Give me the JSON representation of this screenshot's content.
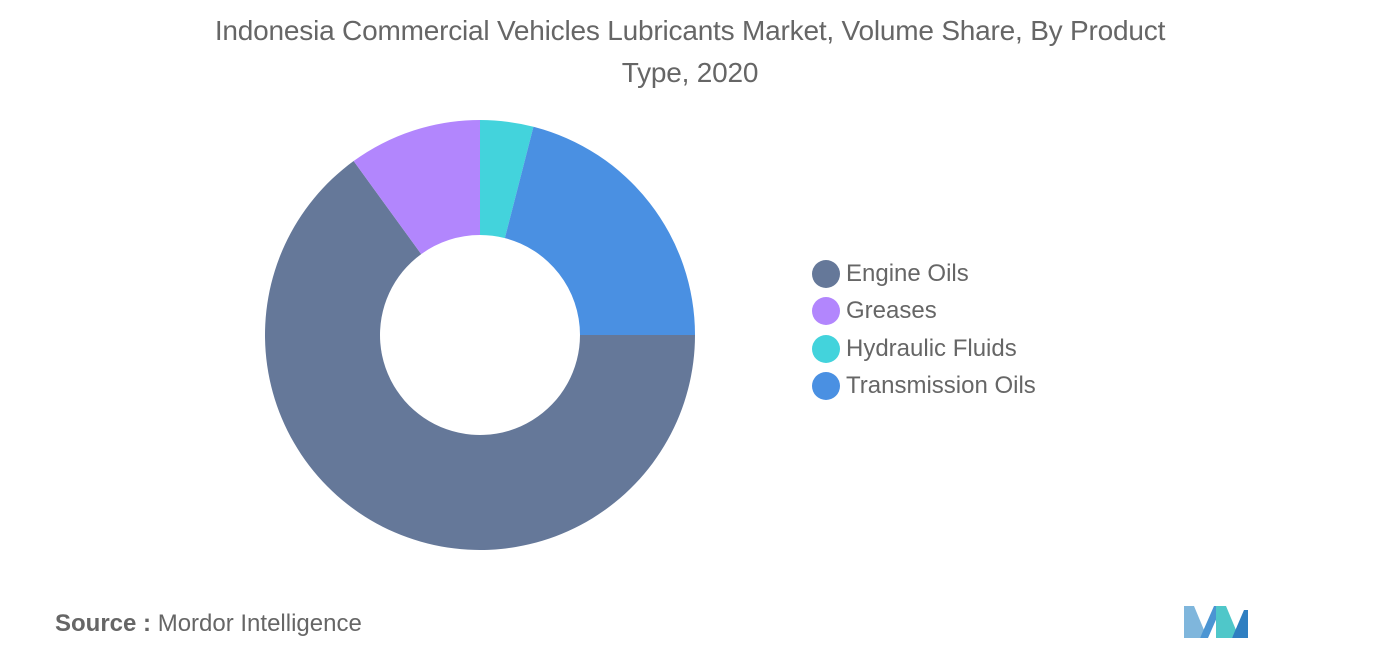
{
  "chart": {
    "title": "Indonesia Commercial Vehicles Lubricants Market, Volume Share, By Product Type, 2020",
    "source_prefix": "Source :",
    "source_value": "Mordor Intelligence"
  },
  "chart_data": {
    "type": "pie",
    "title": "Indonesia Commercial Vehicles Lubricants Market, Volume Share, By Product Type, 2020",
    "categories": [
      "Engine Oils",
      "Greases",
      "Hydraulic Fluids",
      "Transmission Oils"
    ],
    "values": [
      65,
      10,
      4,
      21
    ],
    "colors": [
      "#657899",
      "#b286fd",
      "#43d3dc",
      "#4a90e2"
    ],
    "legend_position": "right",
    "donut": true,
    "start_angle": "90deg-clockwise-from-top"
  },
  "legend": {
    "items": [
      {
        "label": "Engine Oils",
        "color": "#657899"
      },
      {
        "label": "Greases",
        "color": "#b286fd"
      },
      {
        "label": "Hydraulic Fluids",
        "color": "#43d3dc"
      },
      {
        "label": "Transmission Oils",
        "color": "#4a90e2"
      }
    ]
  },
  "branding": {
    "logo_icon": "mordor-intelligence-logo-icon"
  }
}
